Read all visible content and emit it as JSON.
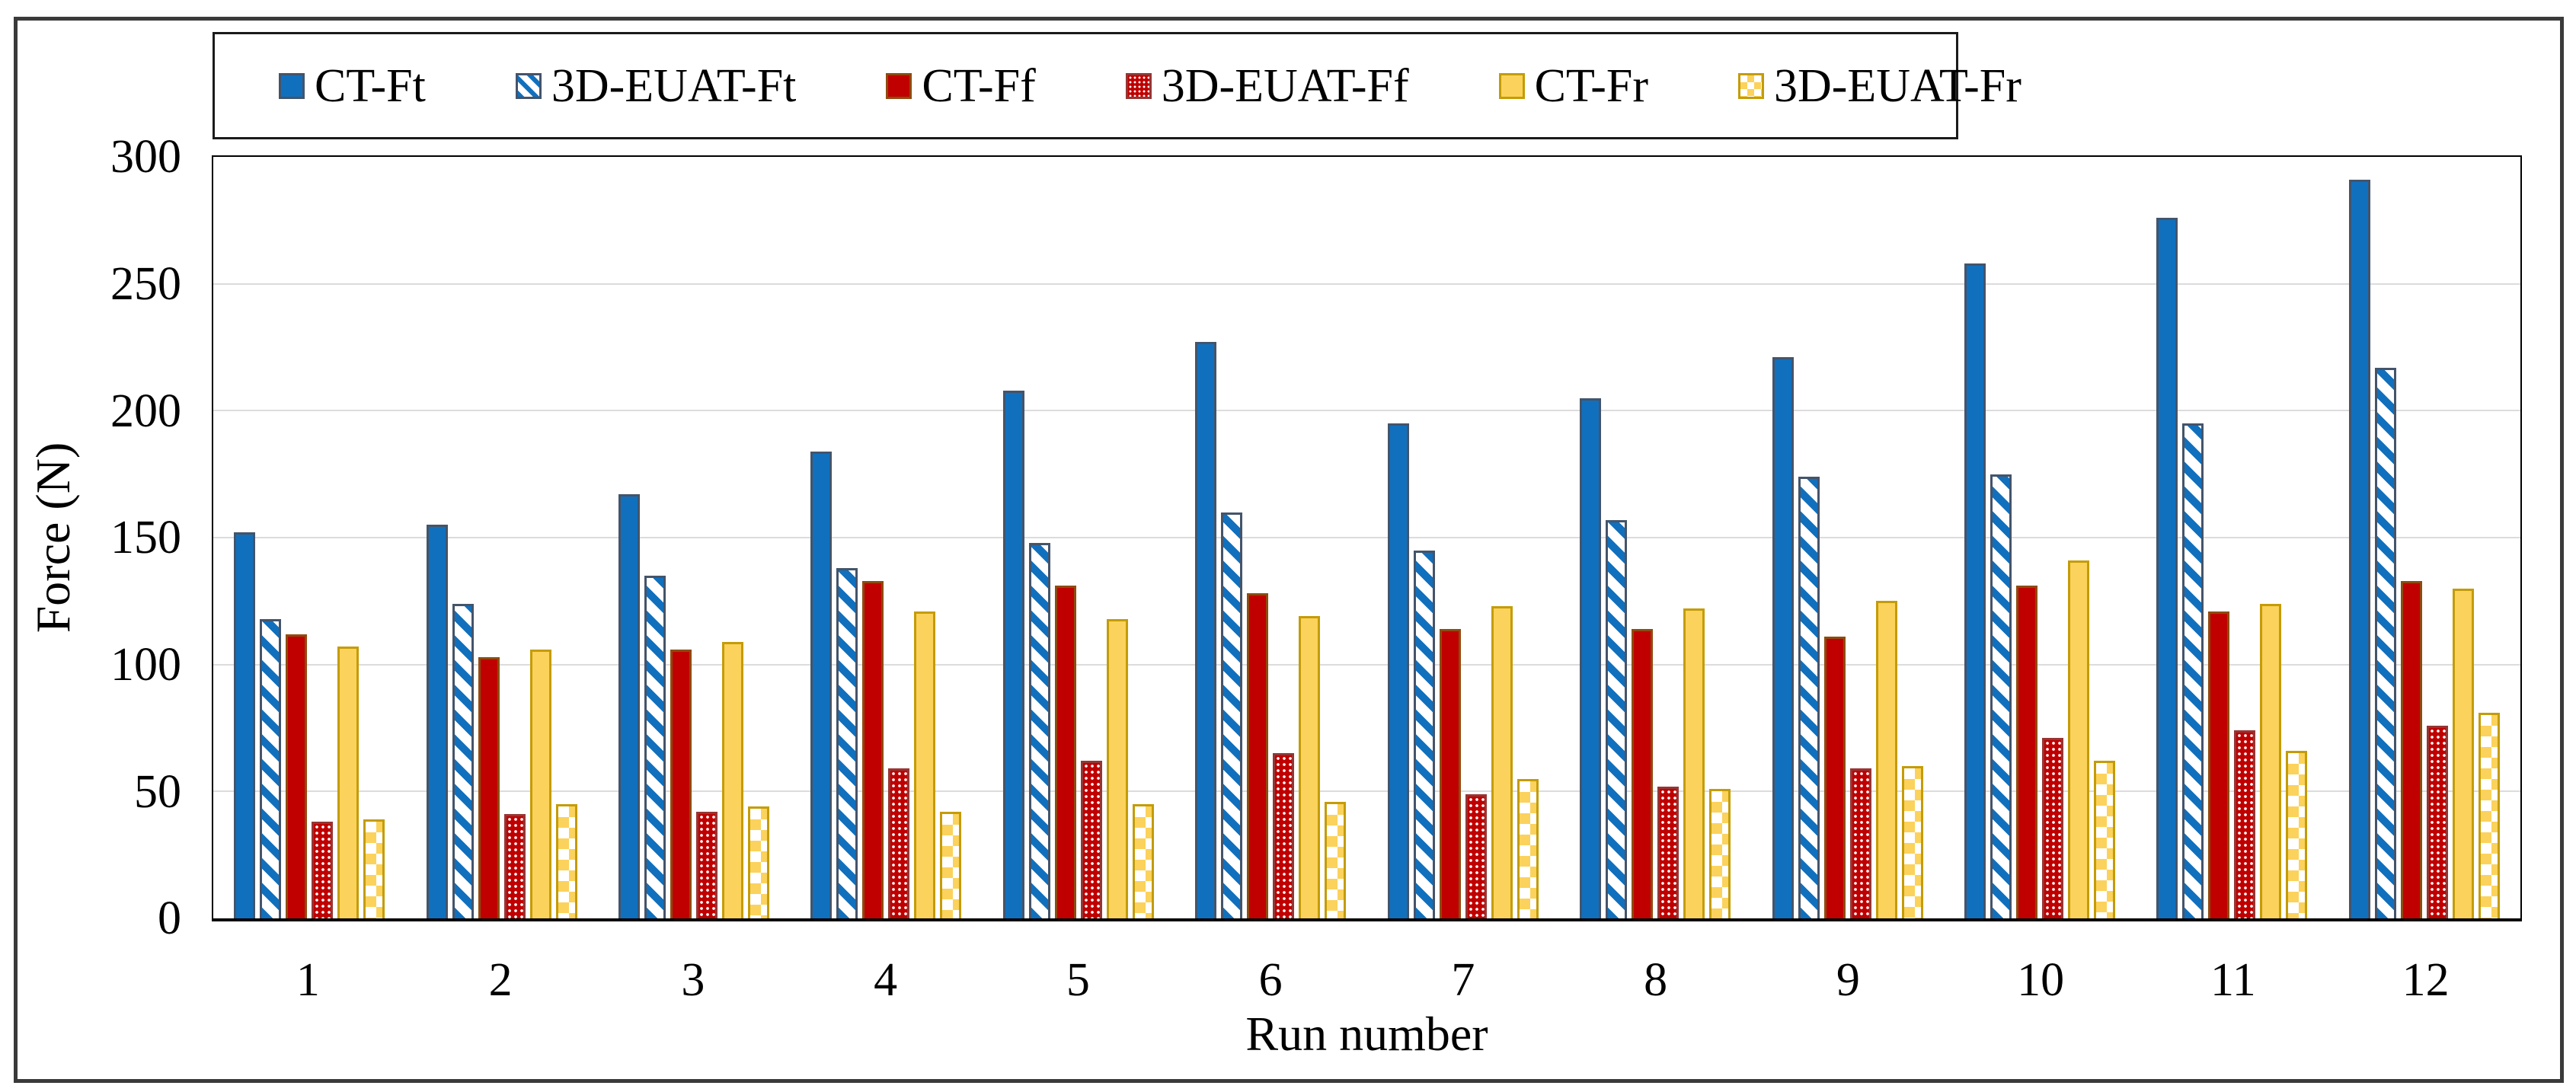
{
  "chart_data": {
    "type": "bar",
    "title": "",
    "xlabel": "Run number",
    "ylabel": "Force (N)",
    "ylim": [
      0,
      300
    ],
    "ytick_step": 50,
    "yticks_top_to_bottom": [
      "300",
      "250",
      "200",
      "150",
      "100",
      "50",
      "0"
    ],
    "categories": [
      "1",
      "2",
      "3",
      "4",
      "5",
      "6",
      "7",
      "8",
      "9",
      "10",
      "11",
      "12"
    ],
    "grid": "horizontal-on",
    "gridline_color": "#dcdcdc",
    "legend_position": "top",
    "series": [
      {
        "name": "CT-Ft",
        "pattern": "solid",
        "fill": "#1170BD",
        "border": "#44546A",
        "values": [
          152,
          155,
          167,
          184,
          208,
          227,
          195,
          205,
          221,
          258,
          276,
          291
        ]
      },
      {
        "name": "3D-EUAT-Ft",
        "pattern": "diagonal-stripes",
        "fill": "#FFFFFF",
        "pattern_color": "#1170BD",
        "border": "#44546A",
        "values": [
          118,
          124,
          135,
          138,
          148,
          160,
          145,
          157,
          174,
          175,
          195,
          217
        ]
      },
      {
        "name": "CT-Ff",
        "pattern": "solid",
        "fill": "#C00000",
        "border": "#8E4B10",
        "values": [
          112,
          103,
          106,
          133,
          131,
          128,
          114,
          114,
          111,
          131,
          121,
          133
        ]
      },
      {
        "name": "3D-EUAT-Ff",
        "pattern": "dot-grid",
        "fill": "#C00000",
        "pattern_color": "#FFFFFF",
        "border": "#943634",
        "values": [
          38,
          41,
          42,
          59,
          62,
          65,
          49,
          52,
          59,
          71,
          74,
          76
        ]
      },
      {
        "name": "CT-Fr",
        "pattern": "solid",
        "fill": "#FBD25B",
        "border": "#C49C08",
        "values": [
          107,
          106,
          109,
          121,
          118,
          119,
          123,
          122,
          125,
          141,
          124,
          130
        ]
      },
      {
        "name": "3D-EUAT-Fr",
        "pattern": "checkerboard",
        "fill": "#FBD25B",
        "pattern_color": "#FFFFFF",
        "border": "#C49C08",
        "values": [
          39,
          45,
          44,
          42,
          45,
          46,
          55,
          51,
          60,
          62,
          66,
          81
        ]
      }
    ]
  }
}
